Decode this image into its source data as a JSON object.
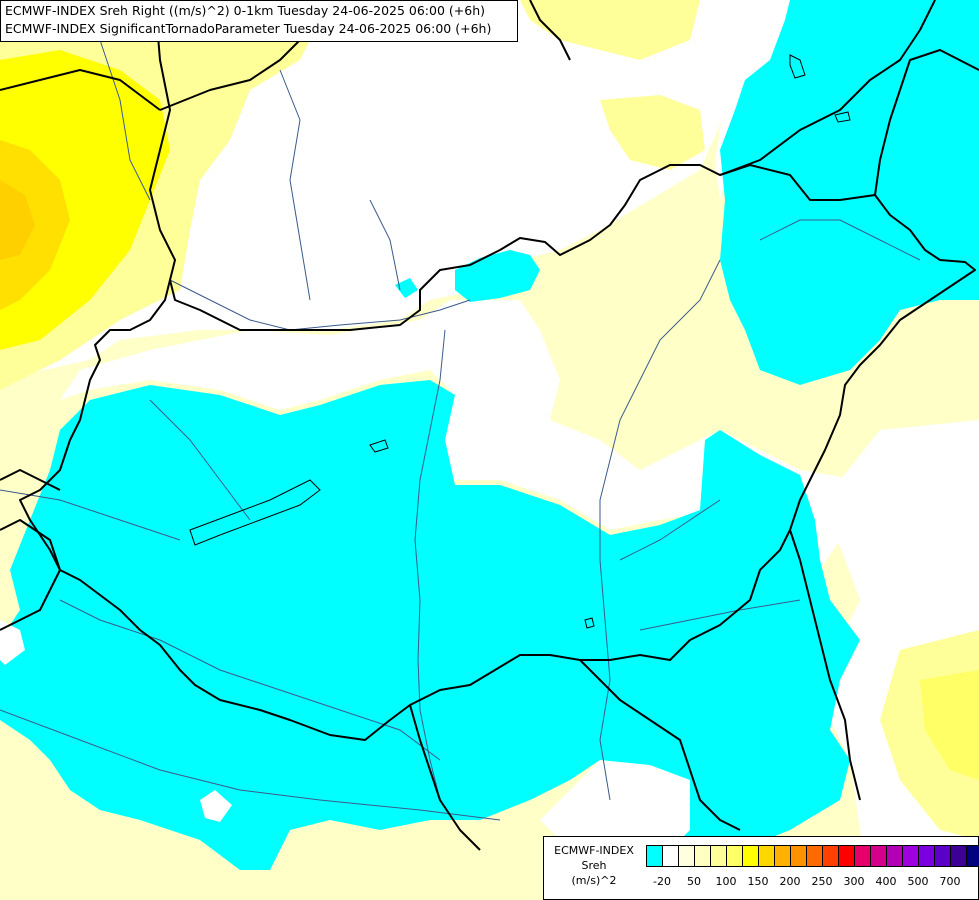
{
  "titles": {
    "line1": "ECMWF-INDEX Sreh Right ((m/s)^2) 0-1km Tuesday 24-06-2025 06:00 (+6h)",
    "line2": "ECMWF-INDEX SignificantTornadoParameter Tuesday 24-06-2025 06:00 (+6h)"
  },
  "legend": {
    "source": "ECMWF-INDEX",
    "field": "Sreh",
    "unit": "(m/s)^2",
    "colors": [
      "#00ffff",
      "#ffffff",
      "#ffffe0",
      "#ffffc0",
      "#ffff99",
      "#ffff66",
      "#ffff00",
      "#ffd700",
      "#ffb000",
      "#ff9000",
      "#ff6a00",
      "#ff4000",
      "#ff0000",
      "#e8006a",
      "#d4008c",
      "#b400b4",
      "#a000e0",
      "#7a00e0",
      "#5a00c8",
      "#3c0096",
      "#000080"
    ],
    "tick_labels": [
      "-20",
      "50",
      "100",
      "150",
      "200",
      "250",
      "300",
      "400",
      "500",
      "700"
    ]
  },
  "map": {
    "colors": {
      "helicity_cyan": "#00ffff",
      "light_cream": "#ffffc8",
      "pale_yellow": "#ffff99",
      "bright_yellow": "#ffff00",
      "golden_yellow": "#ffe000",
      "orange_yellow": "#ffd000",
      "borders": "#000000",
      "rivers": "#3a5a8c"
    }
  }
}
